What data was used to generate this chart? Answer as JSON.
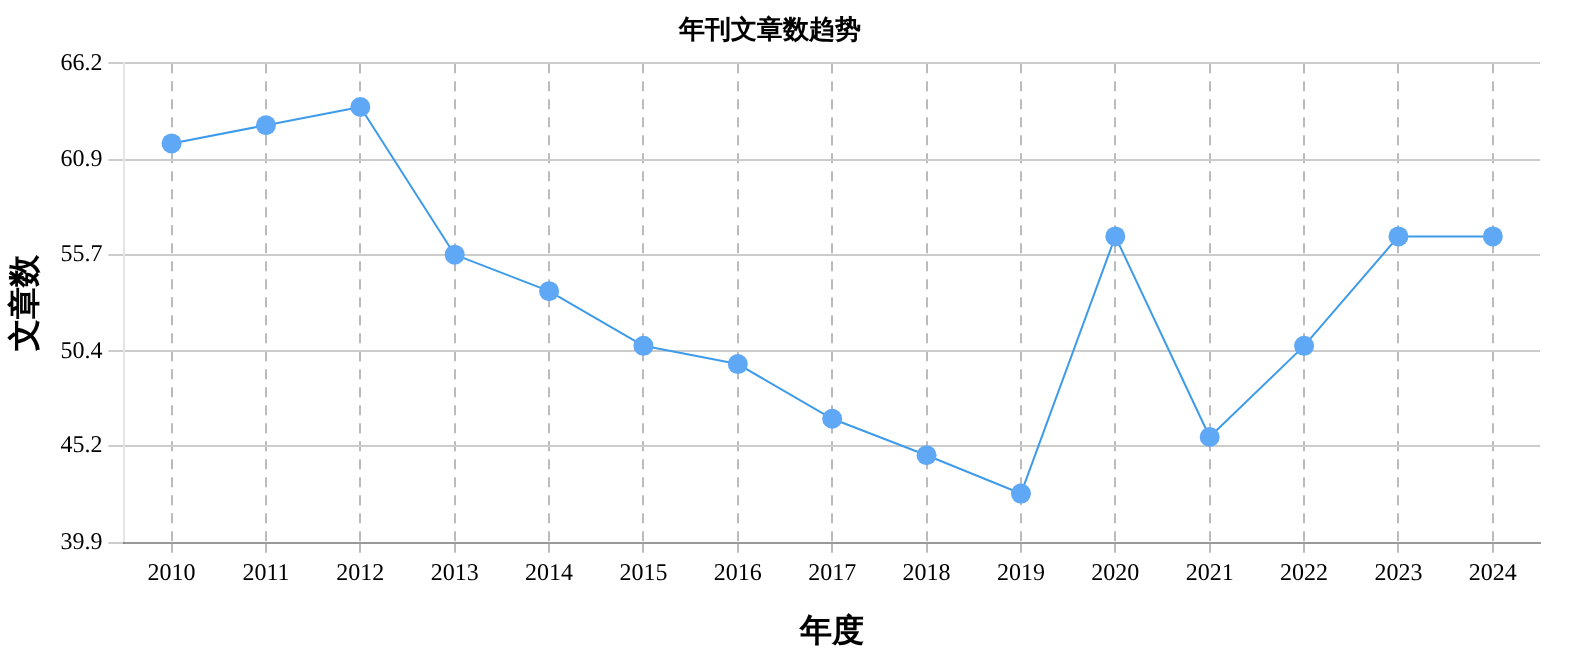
{
  "chart_data": {
    "type": "line",
    "title": "年刊文章数趋势",
    "xlabel": "年度",
    "ylabel": "文章数",
    "categories": [
      "2010",
      "2011",
      "2012",
      "2013",
      "2014",
      "2015",
      "2016",
      "2017",
      "2018",
      "2019",
      "2020",
      "2021",
      "2022",
      "2023",
      "2024"
    ],
    "series": [
      {
        "color": "#3d9be9",
        "values": [
          61.8,
          62.8,
          63.8,
          55.7,
          53.7,
          50.7,
          49.7,
          46.7,
          44.7,
          42.6,
          56.7,
          45.7,
          50.7,
          56.7,
          56.7
        ]
      }
    ],
    "ylim": [
      39.9,
      66.2
    ],
    "yticks": [
      39.9,
      45.2,
      50.4,
      55.7,
      60.9,
      66.2
    ],
    "grid": true,
    "legend": false,
    "marker": "circle",
    "line_style": "solid"
  }
}
